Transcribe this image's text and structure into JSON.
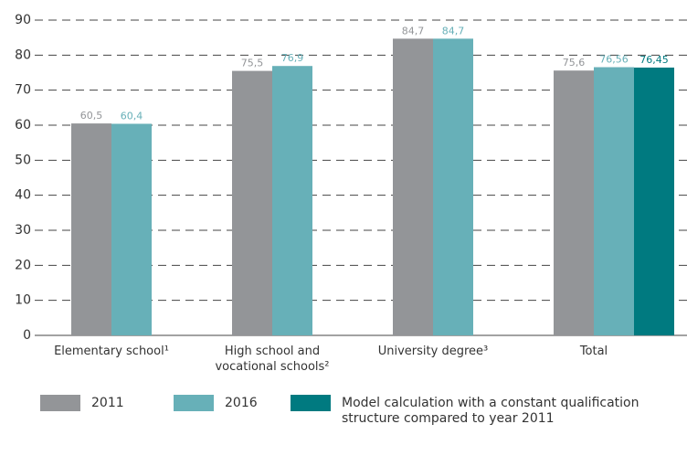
{
  "chart_data": {
    "type": "bar",
    "categories": [
      "Elementary school¹",
      "High school and vocational schools²",
      "University degree³",
      "Total"
    ],
    "series": [
      {
        "name": "2011",
        "color": "#939598",
        "values": [
          60.5,
          75.5,
          84.7,
          75.6
        ],
        "value_labels": [
          "60,5",
          "75,5",
          "84,7",
          "75,6"
        ]
      },
      {
        "name": "2016",
        "color": "#67b0b8",
        "values": [
          60.4,
          76.9,
          84.7,
          76.56
        ],
        "value_labels": [
          "60,4",
          "76,9",
          "84,7",
          "76,56"
        ]
      },
      {
        "name": "Model calculation with a constant qualification structure compared to year 2011",
        "color": "#007a80",
        "values": [
          null,
          null,
          null,
          76.45
        ],
        "value_labels": [
          null,
          null,
          null,
          "76,45"
        ]
      }
    ],
    "ylim": [
      0,
      90
    ],
    "yticks": [
      0,
      10,
      20,
      30,
      40,
      50,
      60,
      70,
      80,
      90
    ],
    "grid": true,
    "legend": "bottom"
  }
}
